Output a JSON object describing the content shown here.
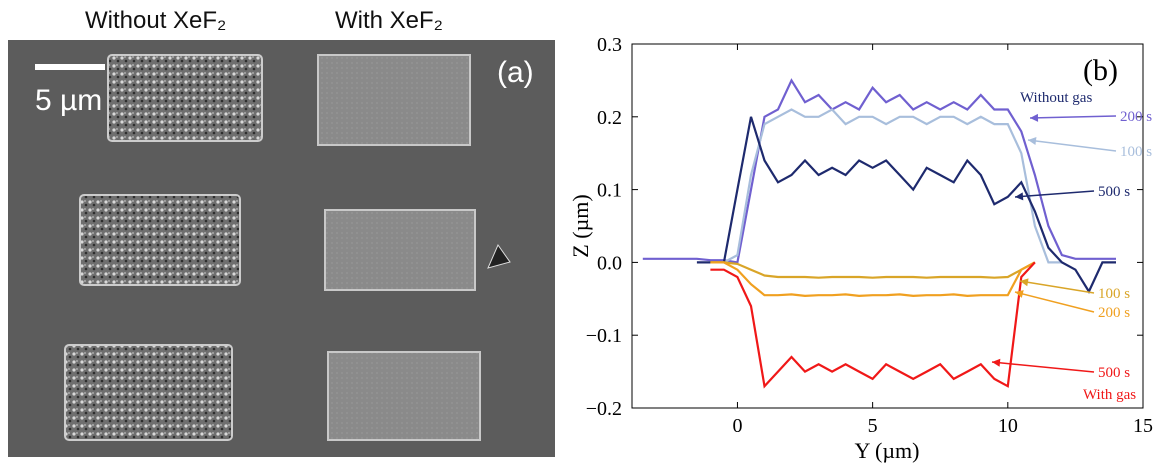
{
  "image_panel": {
    "column_labels": [
      "Without XeF₂",
      "With XeF₂"
    ],
    "scale_bar": "5 µm",
    "panel_label": "(a)"
  },
  "chart_data": {
    "type": "line",
    "panel_label": "(b)",
    "x_label": "Y (µm)",
    "y_label": "Z (µm)",
    "x": [
      -3.5,
      -3,
      -2.5,
      -2,
      -1.5,
      -1,
      -0.5,
      0,
      0.5,
      1,
      1.5,
      2,
      2.5,
      3,
      3.5,
      4,
      4.5,
      5,
      5.5,
      6,
      6.5,
      7,
      7.5,
      8,
      8.5,
      9,
      9.5,
      10,
      10.5,
      11,
      11.5,
      12,
      12.5,
      13,
      13.5,
      14
    ],
    "series": [
      {
        "name": "200 s",
        "color": "#7060d0",
        "values": [
          0.005,
          0.005,
          0.005,
          0.005,
          0.005,
          0.003,
          0.003,
          0.0,
          0.1,
          0.2,
          0.21,
          0.25,
          0.22,
          0.23,
          0.21,
          0.22,
          0.21,
          0.24,
          0.22,
          0.23,
          0.21,
          0.22,
          0.21,
          0.22,
          0.21,
          0.23,
          0.21,
          0.21,
          0.18,
          0.12,
          0.05,
          0.01,
          0.005,
          0.005,
          0.005,
          0.005
        ]
      },
      {
        "name": "100 s",
        "color": "#a8bedc",
        "values": [
          null,
          null,
          null,
          null,
          null,
          0.0,
          0.0,
          0.01,
          0.12,
          0.19,
          0.2,
          0.21,
          0.2,
          0.2,
          0.21,
          0.19,
          0.2,
          0.2,
          0.19,
          0.2,
          0.2,
          0.19,
          0.2,
          0.2,
          0.19,
          0.2,
          0.19,
          0.19,
          0.15,
          0.05,
          0.0,
          0.0,
          null,
          null,
          null,
          null
        ]
      },
      {
        "name": "500 s",
        "color": "#1e2a6e",
        "values": [
          null,
          null,
          null,
          null,
          0.0,
          0.0,
          0.0,
          0.1,
          0.2,
          0.14,
          0.11,
          0.12,
          0.14,
          0.12,
          0.13,
          0.12,
          0.14,
          0.13,
          0.14,
          0.12,
          0.1,
          0.13,
          0.12,
          0.11,
          0.14,
          0.12,
          0.08,
          0.09,
          0.11,
          0.07,
          0.02,
          0.0,
          -0.01,
          -0.04,
          0.0,
          0.0
        ]
      },
      {
        "name": "100 s",
        "color": "#d9a528",
        "values": [
          null,
          null,
          null,
          null,
          null,
          0.0,
          0.0,
          -0.002,
          -0.01,
          -0.018,
          -0.02,
          -0.02,
          -0.02,
          -0.021,
          -0.02,
          -0.02,
          -0.02,
          -0.021,
          -0.02,
          -0.02,
          -0.02,
          -0.021,
          -0.02,
          -0.02,
          -0.02,
          -0.02,
          -0.021,
          -0.02,
          -0.01,
          0.0,
          null,
          null,
          null,
          null,
          null,
          null
        ]
      },
      {
        "name": "200 s",
        "color": "#f0a020",
        "values": [
          null,
          null,
          null,
          null,
          null,
          0.0,
          0.0,
          -0.01,
          -0.03,
          -0.045,
          -0.045,
          -0.044,
          -0.046,
          -0.045,
          -0.045,
          -0.044,
          -0.046,
          -0.045,
          -0.045,
          -0.044,
          -0.046,
          -0.045,
          -0.045,
          -0.044,
          -0.046,
          -0.045,
          -0.045,
          -0.045,
          -0.01,
          0.0,
          null,
          null,
          null,
          null,
          null,
          null
        ]
      },
      {
        "name": "500 s",
        "color": "#f01818",
        "values": [
          null,
          null,
          null,
          null,
          null,
          -0.01,
          -0.01,
          -0.02,
          -0.06,
          -0.17,
          -0.15,
          -0.13,
          -0.15,
          -0.14,
          -0.15,
          -0.14,
          -0.15,
          -0.16,
          -0.14,
          -0.15,
          -0.16,
          -0.15,
          -0.14,
          -0.16,
          -0.15,
          -0.14,
          -0.16,
          -0.17,
          -0.02,
          0.0,
          null,
          null,
          null,
          null,
          null,
          null
        ]
      }
    ],
    "group_labels": [
      "Without gas",
      "With gas"
    ],
    "xlim": [
      -3.9,
      15
    ],
    "ylim": [
      -0.2,
      0.3
    ],
    "xticks": [
      0,
      5,
      10,
      15
    ],
    "yticks": [
      {
        "value": -0.2,
        "label": "−0.2"
      },
      {
        "value": -0.1,
        "label": "−0.1"
      },
      {
        "value": 0,
        "label": "0.0"
      },
      0.1,
      0.2,
      0.3
    ]
  }
}
